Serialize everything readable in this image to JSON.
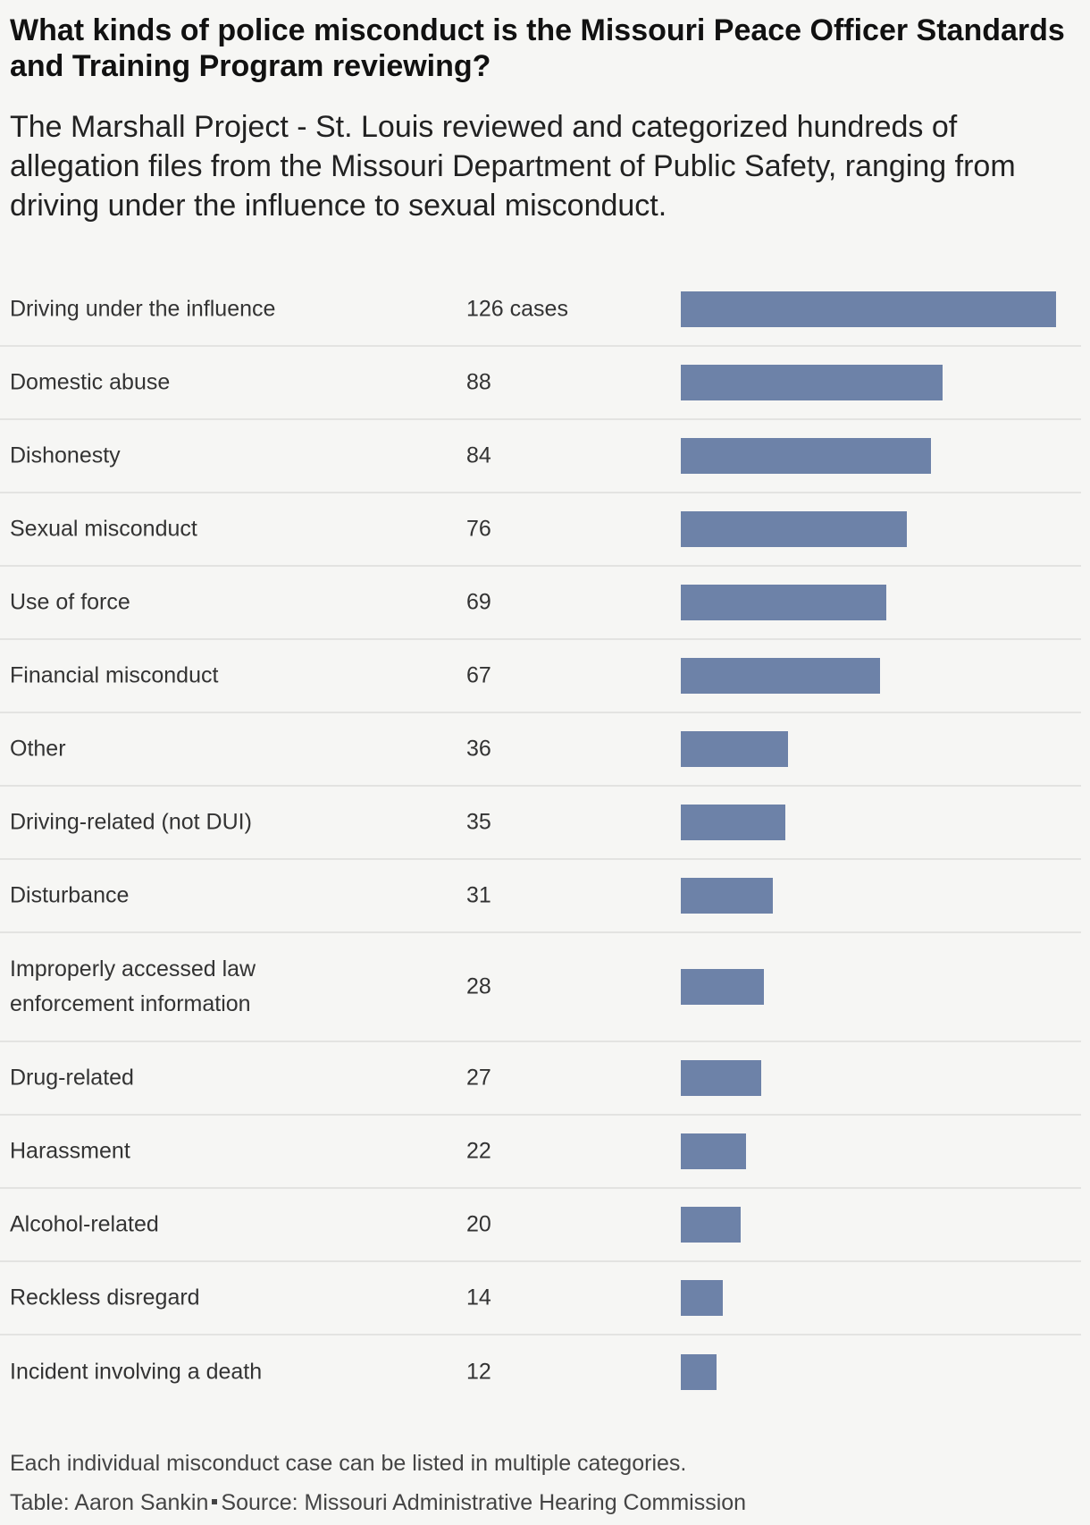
{
  "title": "What kinds of police misconduct is the Missouri Peace Officer Standards and Training Program reviewing?",
  "subtitle": "The Marshall Project - St. Louis reviewed and categorized hundreds of allegation files from the Missouri Department of Public Safety, ranging from driving under the influence to sexual misconduct.",
  "colors": {
    "bar": "#6d82a8",
    "background": "#f6f6f4"
  },
  "chart_data": {
    "type": "bar",
    "orientation": "horizontal",
    "categories": [
      "Driving under the influence",
      "Domestic abuse",
      "Dishonesty",
      "Sexual misconduct",
      "Use of force",
      "Financial misconduct",
      "Other",
      "Driving-related (not DUI)",
      "Disturbance",
      "Improperly accessed law enforcement information",
      "Drug-related",
      "Harassment",
      "Alcohol-related",
      "Reckless disregard",
      "Incident involving a death"
    ],
    "values": [
      126,
      88,
      84,
      76,
      69,
      67,
      36,
      35,
      31,
      28,
      27,
      22,
      20,
      14,
      12
    ],
    "value_labels": [
      "126 cases",
      "88",
      "84",
      "76",
      "69",
      "67",
      "36",
      "35",
      "31",
      "28",
      "27",
      "22",
      "20",
      "14",
      "12"
    ],
    "xlim": [
      0,
      126
    ],
    "grid": false
  },
  "notes": {
    "note": "Each individual misconduct case can be listed in multiple categories.",
    "credit": "Table: Aaron Sankin",
    "source": "Source: Missouri Administrative Hearing Commission"
  }
}
